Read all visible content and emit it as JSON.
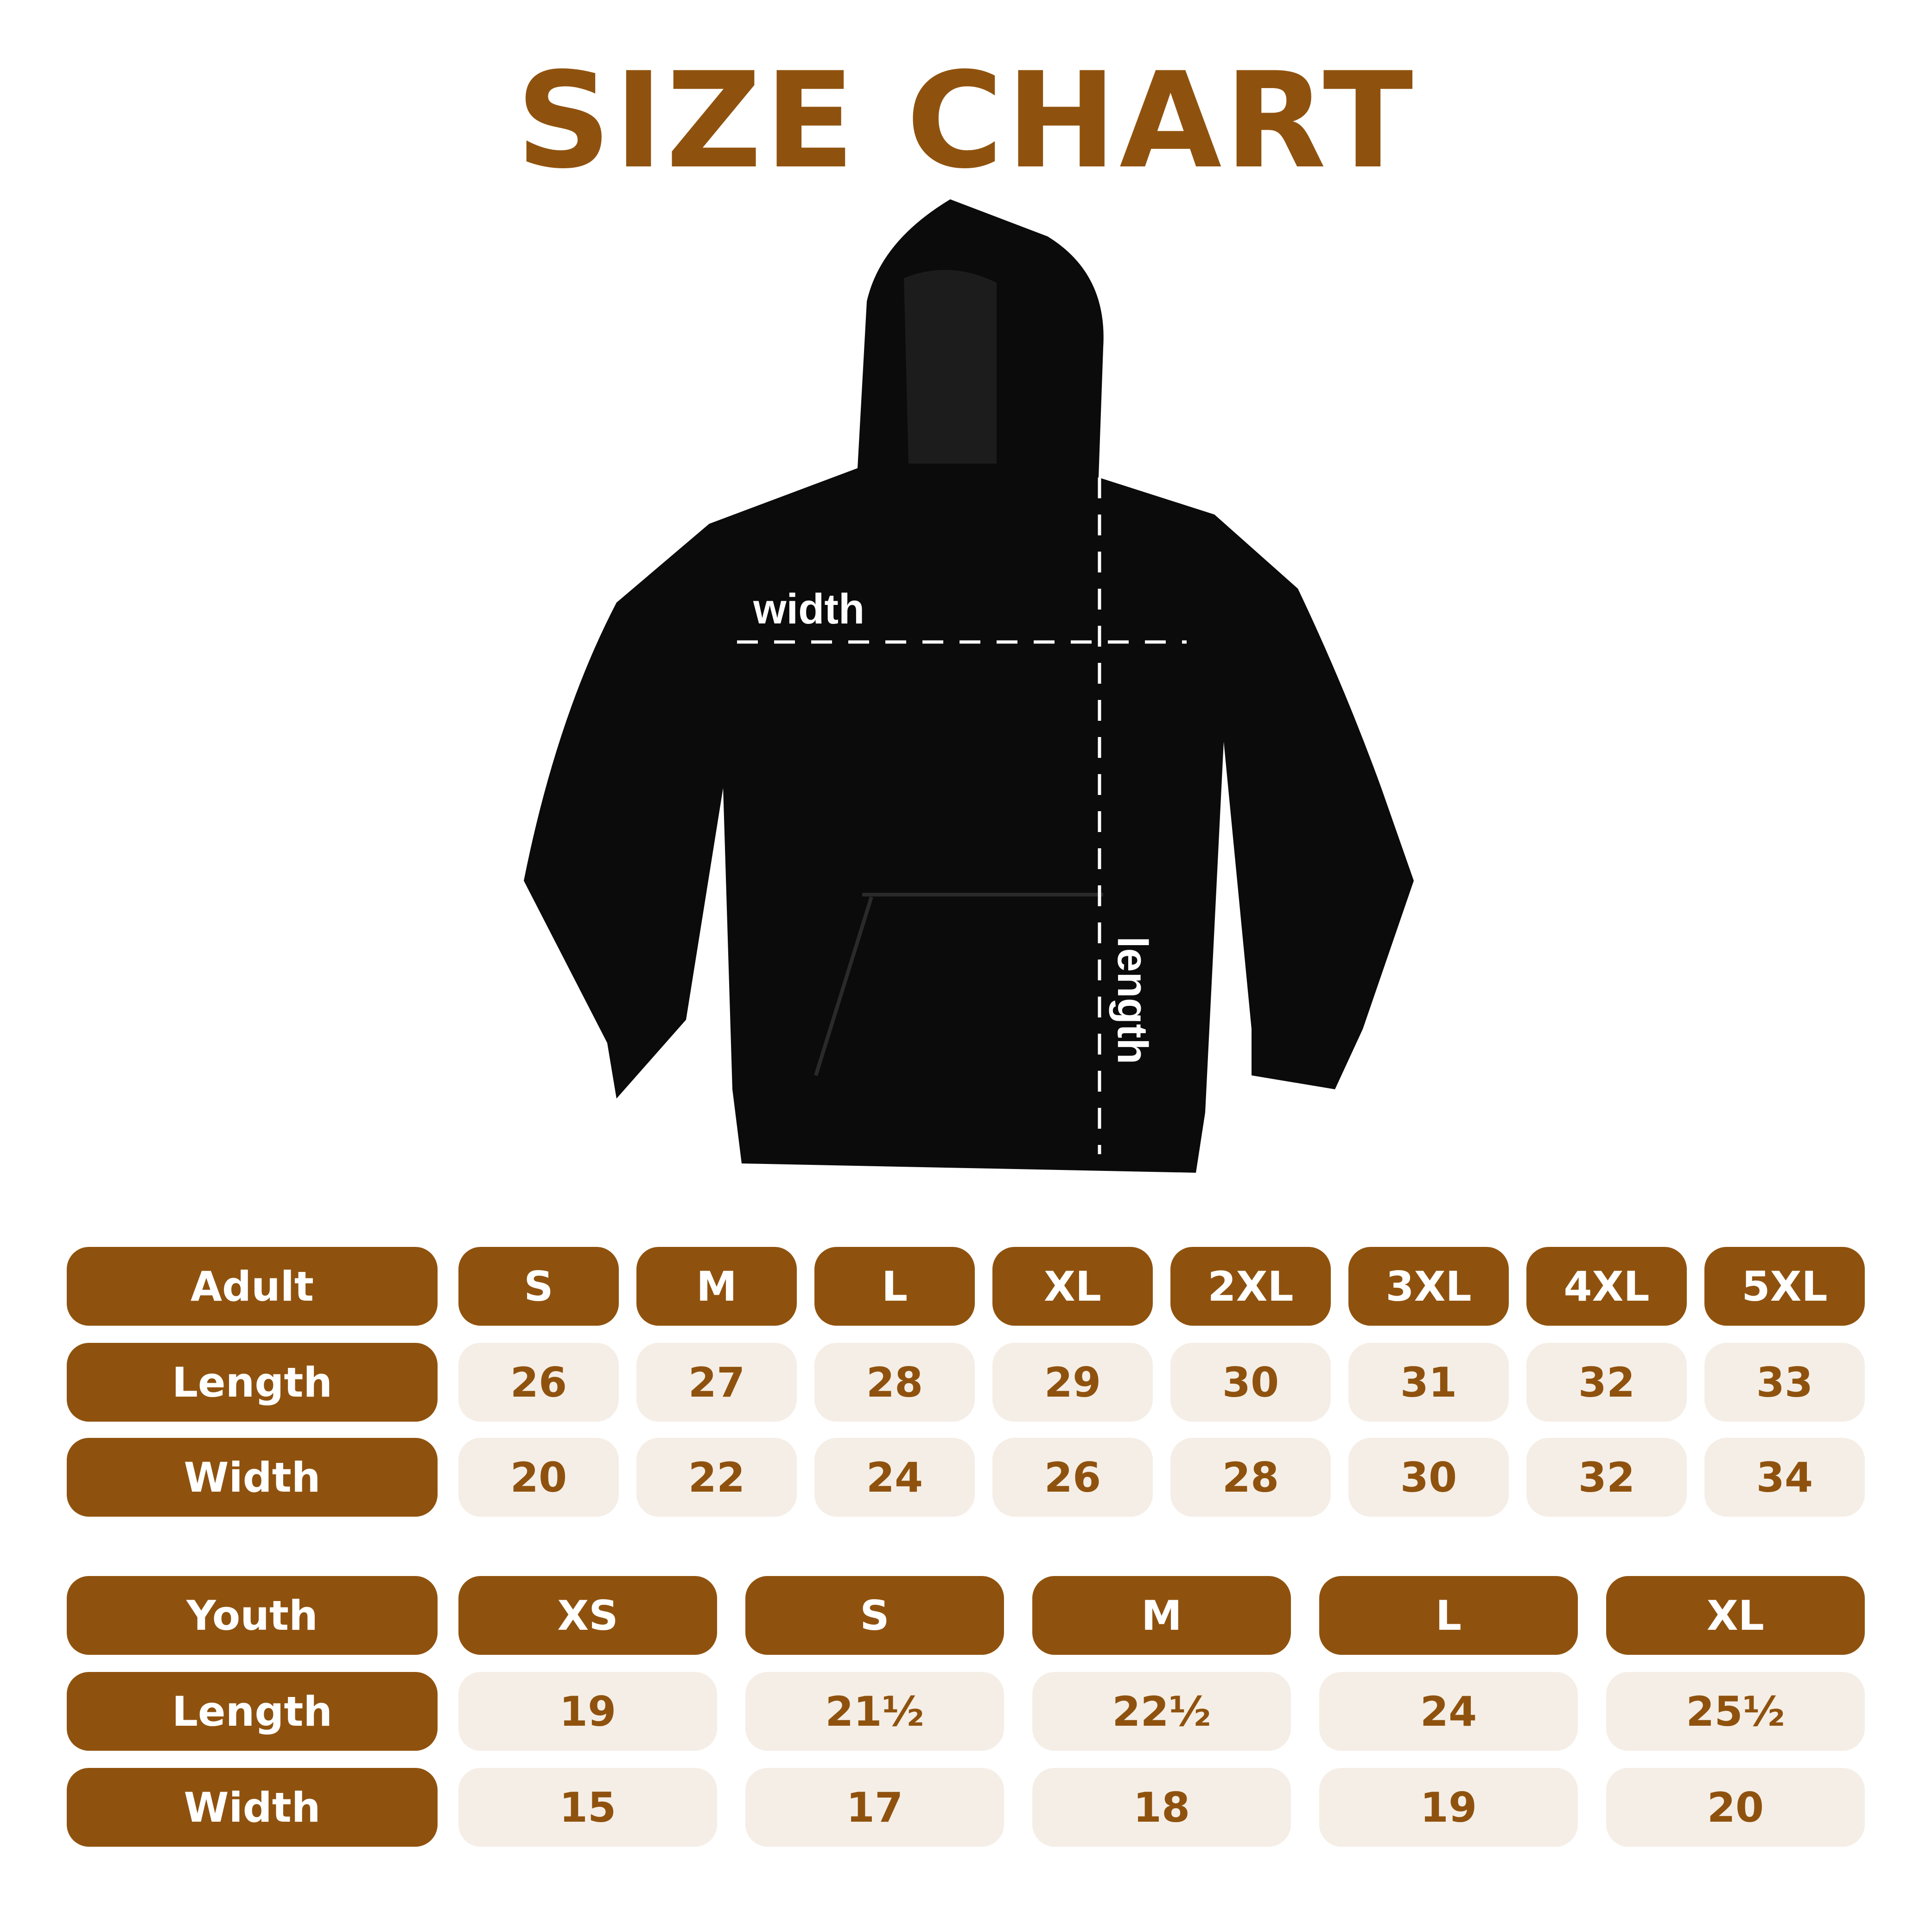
{
  "title": "SIZE CHART",
  "colors": {
    "accent": "#8f520e",
    "cell_bg": "#f5eee6",
    "garment": "#0b0b0b"
  },
  "diagram": {
    "width_label": "width",
    "length_label": "length",
    "garment": "hoodie"
  },
  "adult": {
    "header": "Adult",
    "sizes": [
      "S",
      "M",
      "L",
      "XL",
      "2XL",
      "3XL",
      "4XL",
      "5XL"
    ],
    "rows": [
      {
        "label": "Length",
        "values": [
          "26",
          "27",
          "28",
          "29",
          "30",
          "31",
          "32",
          "33"
        ]
      },
      {
        "label": "Width",
        "values": [
          "20",
          "22",
          "24",
          "26",
          "28",
          "30",
          "32",
          "34"
        ]
      }
    ]
  },
  "youth": {
    "header": "Youth",
    "sizes": [
      "XS",
      "S",
      "M",
      "L",
      "XL"
    ],
    "rows": [
      {
        "label": "Length",
        "values": [
          "19",
          "21½",
          "22½",
          "24",
          "25½"
        ]
      },
      {
        "label": "Width",
        "values": [
          "15",
          "17",
          "18",
          "19",
          "20"
        ]
      }
    ]
  }
}
